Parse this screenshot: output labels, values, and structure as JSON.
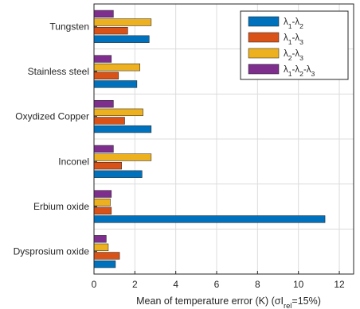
{
  "chart_data": {
    "type": "bar",
    "orientation": "horizontal",
    "categories": [
      "Tungsten",
      "Stainless steel",
      "Oxydized Copper",
      "Inconel",
      "Erbium oxide",
      "Dysprosium oxide"
    ],
    "series": [
      {
        "name": "λ1-λ2",
        "name_parts": [
          [
            "λ",
            ""
          ],
          [
            "1",
            "sub"
          ],
          [
            "-λ",
            ""
          ],
          [
            "2",
            "sub"
          ]
        ],
        "color": "#0072BD",
        "values": [
          2.7,
          2.1,
          2.8,
          2.35,
          11.3,
          1.05
        ]
      },
      {
        "name": "λ1-λ3",
        "name_parts": [
          [
            "λ",
            ""
          ],
          [
            "1",
            "sub"
          ],
          [
            "-λ",
            ""
          ],
          [
            "3",
            "sub"
          ]
        ],
        "color": "#D95319",
        "values": [
          1.65,
          1.2,
          1.5,
          1.35,
          0.85,
          1.25
        ]
      },
      {
        "name": "λ2-λ3",
        "name_parts": [
          [
            "λ",
            ""
          ],
          [
            "2",
            "sub"
          ],
          [
            "-λ",
            ""
          ],
          [
            "3",
            "sub"
          ]
        ],
        "color": "#EDB120",
        "values": [
          2.8,
          2.25,
          2.4,
          2.8,
          0.8,
          0.7
        ]
      },
      {
        "name": "λ1-λ2-λ3",
        "name_parts": [
          [
            "λ",
            ""
          ],
          [
            "1",
            "sub"
          ],
          [
            "-λ",
            ""
          ],
          [
            "2",
            "sub"
          ],
          [
            "-λ",
            ""
          ],
          [
            "3",
            "sub"
          ]
        ],
        "color": "#7E2F8E",
        "values": [
          0.95,
          0.85,
          0.95,
          0.95,
          0.85,
          0.6
        ]
      }
    ],
    "xlabel": "Mean of temperature error (K) (σI_rel=15%)",
    "xlabel_parts": [
      [
        "Mean of temperature error (K) (σI",
        ""
      ],
      [
        "rel",
        "sub"
      ],
      [
        "=15%)",
        ""
      ]
    ],
    "xlim": [
      0,
      12.7
    ],
    "xticks": [
      0,
      2,
      4,
      6,
      8,
      10,
      12
    ],
    "xtick_labels": [
      "0",
      "2",
      "4",
      "6",
      "8",
      "10",
      "12"
    ],
    "grid": true,
    "legend_position": "top-right"
  }
}
